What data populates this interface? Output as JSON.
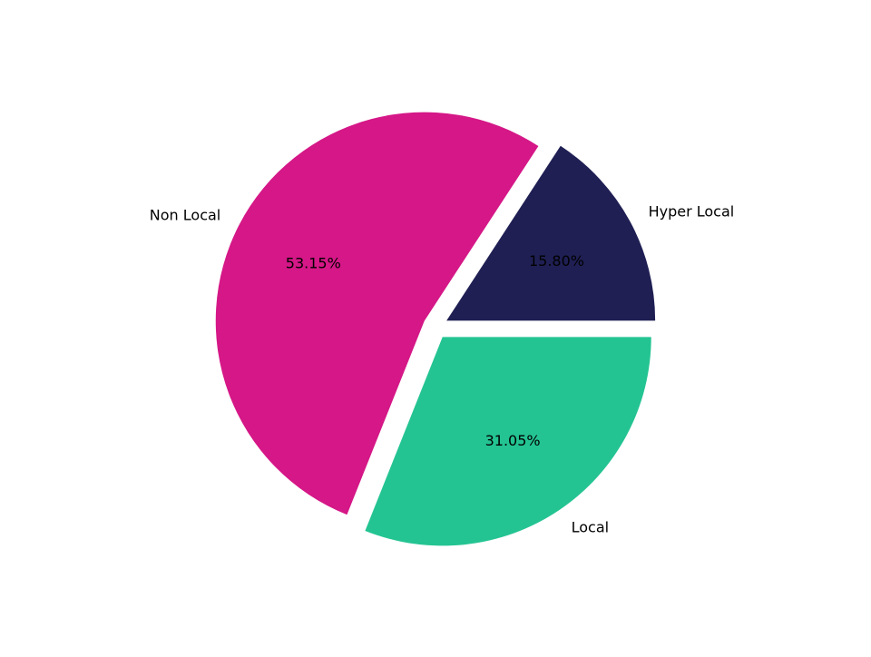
{
  "chart_data": {
    "type": "pie",
    "title": "",
    "start_angle_deg": 0,
    "direction": "counterclockwise",
    "slices": [
      {
        "label": "Hyper Local",
        "value": 15.8,
        "pct_label": "15.80%",
        "color": "#1f1f54",
        "exploded": true
      },
      {
        "label": "Non Local",
        "value": 53.15,
        "pct_label": "53.15%",
        "color": "#d51787",
        "exploded": true
      },
      {
        "label": "Local",
        "value": 31.05,
        "pct_label": "31.05%",
        "color": "#24c492",
        "exploded": true
      }
    ]
  }
}
